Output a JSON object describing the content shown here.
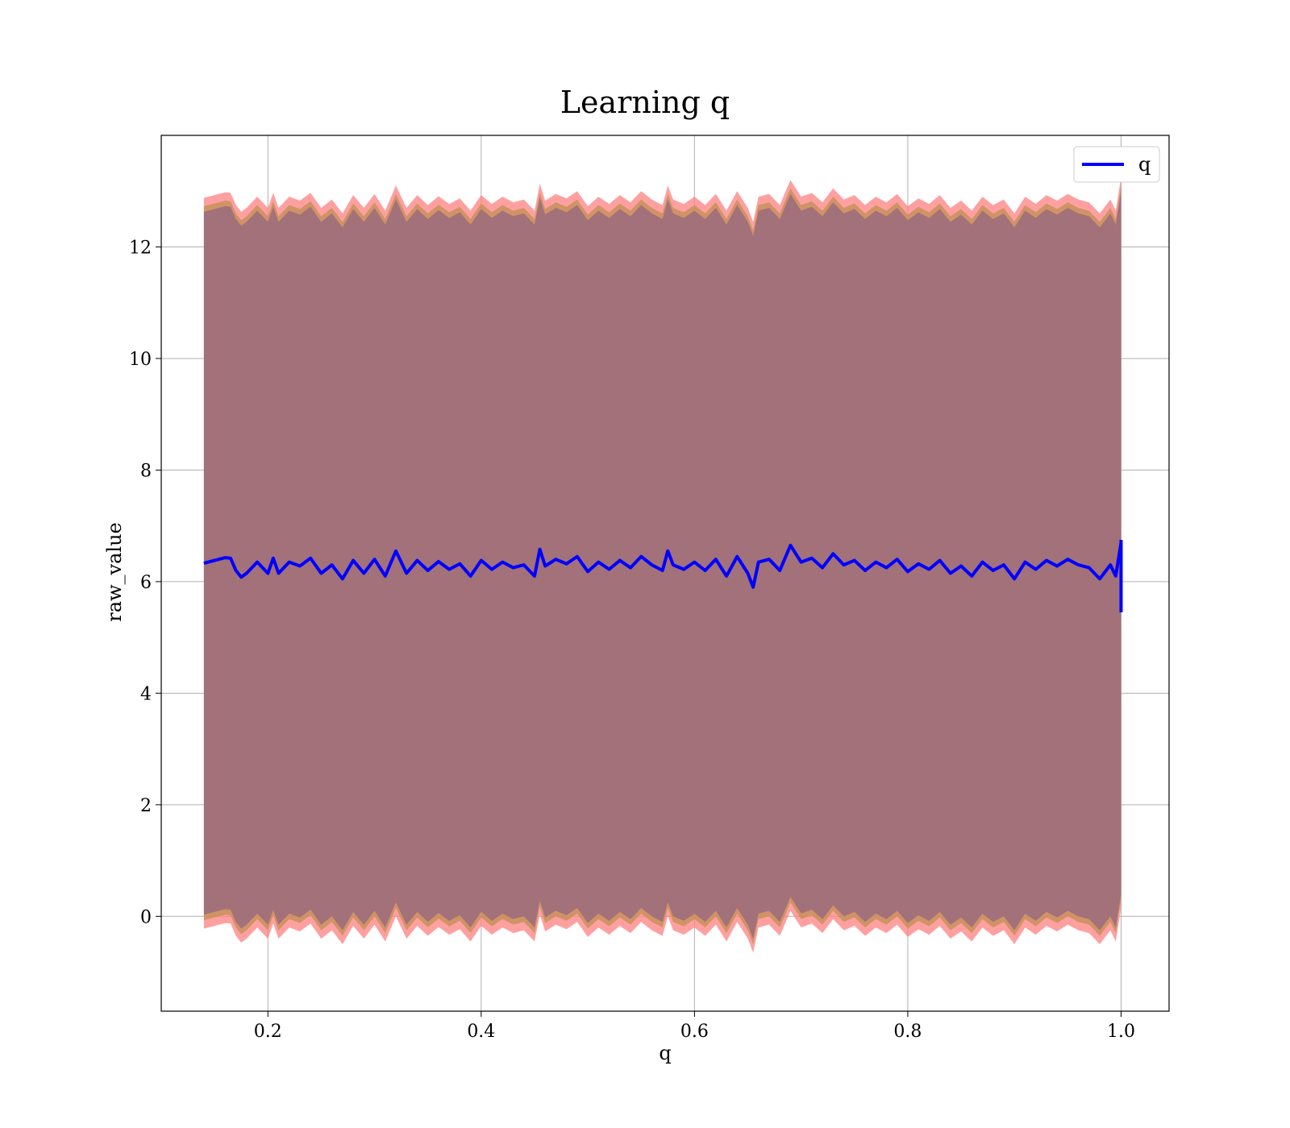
{
  "chart_data": {
    "type": "line",
    "title": "Learning q",
    "xlabel": "q",
    "ylabel": "raw_value",
    "xlim": [
      0.1,
      1.045
    ],
    "ylim": [
      -1.7,
      14.0
    ],
    "x_ticks": [
      0.2,
      0.4,
      0.6,
      0.8,
      1.0
    ],
    "x_tick_labels": [
      "0.2",
      "0.4",
      "0.6",
      "0.8",
      "1.0"
    ],
    "y_ticks": [
      0,
      2,
      4,
      6,
      8,
      10,
      12
    ],
    "y_tick_labels": [
      "0",
      "2",
      "4",
      "6",
      "8",
      "10",
      "12"
    ],
    "grid": true,
    "legend": {
      "position": "top-right",
      "entries": [
        "q"
      ]
    },
    "colors": {
      "line": "#0000ff",
      "band_outer": "#ff8080",
      "band_mid": "#c8905c",
      "band_inner": "#a2717a",
      "grid": "#b0b0b0"
    },
    "series": [
      {
        "name": "q",
        "x": [
          0.14,
          0.15,
          0.16,
          0.165,
          0.17,
          0.175,
          0.18,
          0.19,
          0.2,
          0.205,
          0.21,
          0.22,
          0.23,
          0.24,
          0.25,
          0.26,
          0.27,
          0.28,
          0.29,
          0.3,
          0.31,
          0.32,
          0.33,
          0.34,
          0.35,
          0.36,
          0.37,
          0.38,
          0.39,
          0.4,
          0.41,
          0.42,
          0.43,
          0.44,
          0.45,
          0.455,
          0.46,
          0.47,
          0.48,
          0.49,
          0.5,
          0.51,
          0.52,
          0.53,
          0.54,
          0.55,
          0.56,
          0.57,
          0.575,
          0.58,
          0.59,
          0.6,
          0.61,
          0.62,
          0.63,
          0.64,
          0.65,
          0.655,
          0.66,
          0.67,
          0.68,
          0.69,
          0.7,
          0.71,
          0.72,
          0.73,
          0.74,
          0.75,
          0.76,
          0.77,
          0.78,
          0.79,
          0.8,
          0.81,
          0.82,
          0.83,
          0.84,
          0.85,
          0.86,
          0.87,
          0.88,
          0.89,
          0.9,
          0.91,
          0.92,
          0.93,
          0.94,
          0.95,
          0.96,
          0.97,
          0.98,
          0.99,
          0.995,
          1.0
        ],
        "values": [
          6.33,
          6.38,
          6.43,
          6.42,
          6.2,
          6.08,
          6.15,
          6.35,
          6.15,
          6.42,
          6.15,
          6.35,
          6.28,
          6.42,
          6.15,
          6.3,
          6.05,
          6.38,
          6.15,
          6.4,
          6.1,
          6.55,
          6.15,
          6.38,
          6.2,
          6.36,
          6.22,
          6.32,
          6.1,
          6.38,
          6.22,
          6.35,
          6.25,
          6.3,
          6.1,
          6.58,
          6.28,
          6.4,
          6.32,
          6.45,
          6.18,
          6.35,
          6.22,
          6.38,
          6.25,
          6.45,
          6.3,
          6.2,
          6.55,
          6.3,
          6.22,
          6.35,
          6.2,
          6.4,
          6.1,
          6.45,
          6.15,
          5.9,
          6.35,
          6.4,
          6.2,
          6.65,
          6.35,
          6.42,
          6.25,
          6.5,
          6.3,
          6.38,
          6.2,
          6.35,
          6.25,
          6.4,
          6.18,
          6.32,
          6.22,
          6.38,
          6.15,
          6.28,
          6.1,
          6.35,
          6.2,
          6.3,
          6.05,
          6.35,
          6.22,
          6.38,
          6.28,
          6.4,
          6.3,
          6.25,
          6.05,
          6.3,
          6.1,
          6.7
        ],
        "band_offsets": [
          6.3,
          6.4,
          6.55
        ]
      }
    ]
  }
}
